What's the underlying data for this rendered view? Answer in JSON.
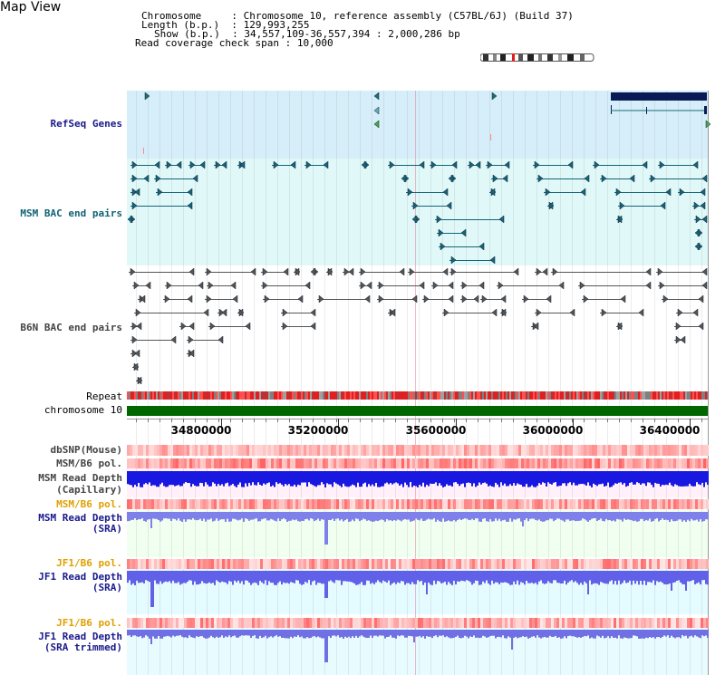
{
  "map_view": {
    "title": "Map View",
    "info": [
      {
        "label": "Chromosome",
        "value": "Chromosome 10, reference assembly (C57BL/6J) (Build 37)"
      },
      {
        "label": "Length (b.p.)",
        "value": "129,993,255"
      },
      {
        "label": "Show (b.p.)",
        "value": "34,557,109-36,557,394 : 2,000,286 bp"
      },
      {
        "label": "Read coverage check span",
        "value": "10,000"
      }
    ]
  },
  "tracks": {
    "refseq_genes": "RefSeq Genes",
    "msm_bac": "MSM BAC end pairs",
    "b6n_bac": "B6N BAC end pairs",
    "repeat": "Repeat",
    "chromosome": "chromosome 10",
    "dbsnp": "dbSNP(Mouse)",
    "msm_b6_pol_1": "MSM/B6 pol.",
    "msm_read_depth_cap_1": "MSM Read Depth",
    "msm_read_depth_cap_2": "(Capillary)",
    "msm_b6_pol_2": "MSM/B6 pol.",
    "msm_read_depth_sra_1": "MSM Read Depth",
    "msm_read_depth_sra_2": "(SRA)",
    "jf1_b6_pol_1": "JF1/B6 pol.",
    "jf1_read_depth_sra_1": "JF1 Read Depth",
    "jf1_read_depth_sra_2": "(SRA)",
    "jf1_b6_pol_2": "JF1/B6 pol.",
    "jf1_read_depth_trim_1": "JF1 Read Depth",
    "jf1_read_depth_trim_2": "(SRA trimmed)"
  },
  "axis": {
    "ticks": [
      "34800000",
      "35200000",
      "35600000",
      "36000000",
      "36400000"
    ]
  },
  "colors": {
    "refseq_bg": "#d5eef9",
    "msm_bg": "#e0f8f8",
    "msm_feature": "#15647a",
    "b6n_feature": "#555555",
    "chromosome_bar": "#006600",
    "depth_capillary": "#1818e0",
    "depth_sra": "#8080ea"
  }
}
